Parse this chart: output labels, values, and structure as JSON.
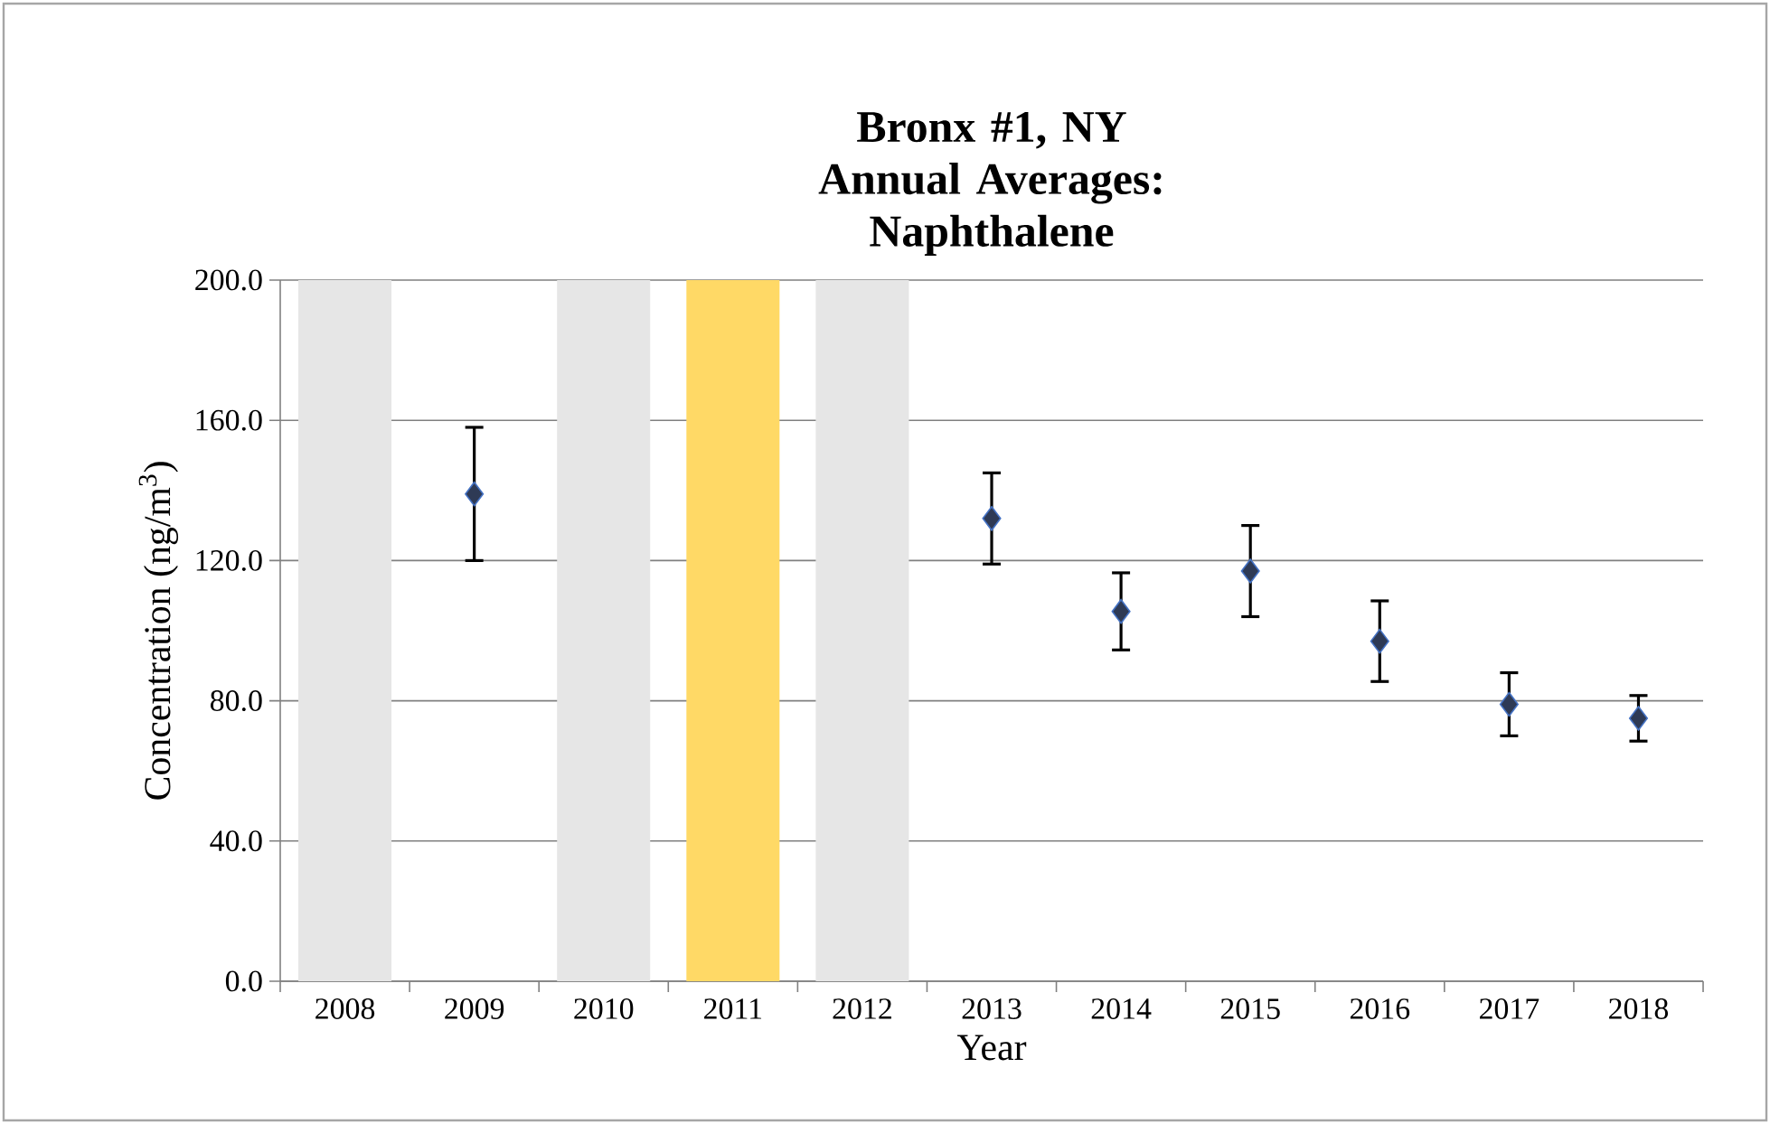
{
  "chart_data": {
    "type": "scatter",
    "title": "Bronx #1, NY Annual Averages: Naphthalene",
    "xlabel": "Year",
    "ylabel": "Concentration (ng/m$^{3}$)",
    "categories": [
      "2008",
      "2009",
      "2010",
      "2011",
      "2012",
      "2013",
      "2014",
      "2015",
      "2016",
      "2017",
      "2018"
    ],
    "series": [
      {
        "color": "#2e3a55",
        "values": [
          null,
          139,
          null,
          null,
          null,
          132,
          105.5,
          117,
          97,
          79,
          75
        ],
        "errors": [
          null,
          19,
          null,
          null,
          null,
          13,
          11,
          13,
          11.5,
          9,
          6.5
        ]
      }
    ],
    "ylim": [
      0,
      200
    ],
    "yticks": [
      {
        "value": 0,
        "label": "0.0"
      },
      {
        "value": 40,
        "label": "40.0"
      },
      {
        "value": 80,
        "label": "80.0"
      },
      {
        "value": 120,
        "label": "120.0"
      },
      {
        "value": 160,
        "label": "160.0"
      },
      {
        "value": 200,
        "label": "200.0"
      }
    ],
    "grid": "y",
    "marker": "diamond",
    "bands": [
      {
        "axis": "x",
        "from": "2008",
        "to": "2008",
        "color": "#e6e6e6"
      },
      {
        "axis": "x",
        "from": "2010",
        "to": "2010",
        "color": "#e6e6e6"
      },
      {
        "axis": "x",
        "from": "2011",
        "to": "2011",
        "color": "#ffd966"
      },
      {
        "axis": "x",
        "from": "2012",
        "to": "2012",
        "color": "#e6e6e6"
      }
    ]
  }
}
